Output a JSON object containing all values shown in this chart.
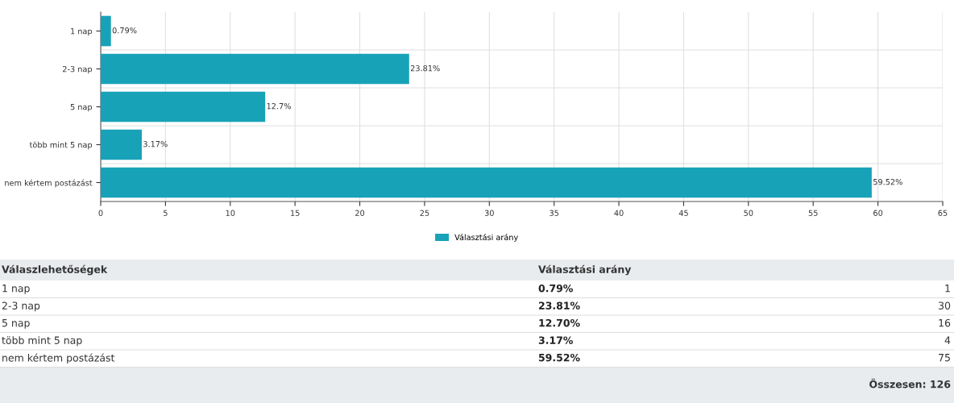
{
  "chart_data": [
    {
      "type": "bar",
      "orientation": "horizontal",
      "categories": [
        "1 nap",
        "2-3 nap",
        "5 nap",
        "több mint 5 nap",
        "nem kértem postázást"
      ],
      "series": [
        {
          "name": "Választási arány",
          "color": "#18a2b8",
          "values": [
            0.79,
            23.81,
            12.7,
            3.17,
            59.52
          ],
          "value_labels": [
            "0.79%",
            "23.81%",
            "12.7%",
            "3.17%",
            "59.52%"
          ]
        }
      ],
      "xlim": [
        0,
        65
      ],
      "xticks": [
        0,
        5,
        10,
        15,
        20,
        25,
        30,
        35,
        40,
        45,
        50,
        55,
        60,
        65
      ],
      "grid": true,
      "legend": "bottom"
    },
    {
      "type": "other",
      "annotations": [
        "Válaszlehetőségek",
        "Választási arány",
        "1",
        "30",
        "16",
        "4",
        "75",
        "Összesen: 126"
      ],
      "categories": [
        "1 nap",
        "2-3 nap",
        "5 nap",
        "több mint 5 nap",
        "nem kértem postázást"
      ],
      "value_labels": [
        "0.79%",
        "23.81%",
        "12.70%",
        "3.17%",
        "59.52%"
      ]
    }
  ]
}
